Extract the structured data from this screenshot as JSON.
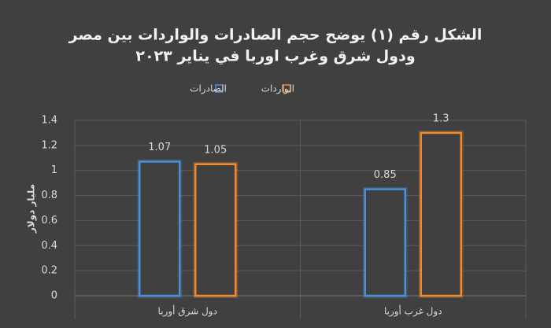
{
  "chart_data": {
    "type": "bar",
    "title": [
      "الشكل رقم (١) يوضح حجم الصادرات والواردات بين مصر",
      "ودول شرق وغرب اوربا في يناير ٢٠٢٣"
    ],
    "y_label": "مليار دولار",
    "categories": [
      "دول شرق أوربا",
      "دول غرب أوربا"
    ],
    "series": [
      {
        "name": "الصادرات",
        "color": "#4a8fd8",
        "values": [
          1.07,
          0.85
        ]
      },
      {
        "name": "الواردات",
        "color": "#f08a2e",
        "values": [
          1.05,
          1.3
        ]
      }
    ],
    "ylim": [
      0,
      1.4
    ],
    "yticks": [
      0,
      0.2,
      0.4,
      0.6,
      0.8,
      1,
      1.2,
      1.4
    ],
    "grid": true
  }
}
